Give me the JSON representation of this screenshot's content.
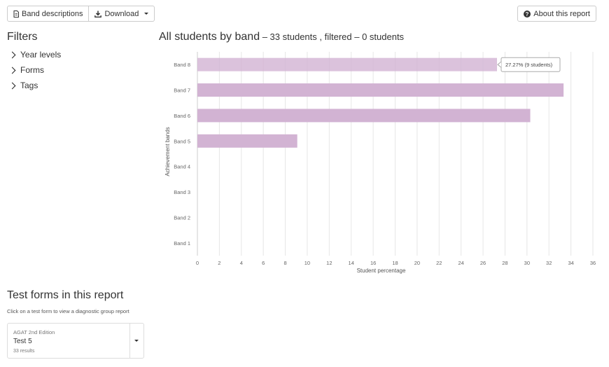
{
  "toolbar": {
    "band_descriptions_label": "Band descriptions",
    "download_label": "Download",
    "about_label": "About this report"
  },
  "filters": {
    "title": "Filters",
    "items": [
      "Year levels",
      "Forms",
      "Tags"
    ]
  },
  "report": {
    "title_main": "All students by band",
    "title_sub": " – 33 students , filtered – 0 students"
  },
  "chart_data": {
    "type": "bar",
    "orientation": "horizontal",
    "categories": [
      "Band 8",
      "Band 7",
      "Band 6",
      "Band 5",
      "Band 4",
      "Band 3",
      "Band 2",
      "Band 1"
    ],
    "values": [
      27.27,
      33.33,
      30.3,
      9.09,
      0,
      0,
      0,
      0
    ],
    "xlabel": "Student percentage",
    "ylabel": "Achievement bands",
    "xlim": [
      0,
      36
    ],
    "xticks": [
      0,
      2,
      4,
      6,
      8,
      10,
      12,
      14,
      16,
      18,
      20,
      22,
      24,
      26,
      28,
      30,
      32,
      34,
      36
    ],
    "grid": true,
    "bar_color": "#d2b3d3",
    "tooltip": {
      "category": "Band 8",
      "text": "27.27% (9 students)"
    }
  },
  "tests": {
    "title": "Test forms in this report",
    "hint": "Click on a test form to view a diagnostic group report",
    "card": {
      "edition": "AGAT 2nd Edition",
      "name": "Test 5",
      "results": "33 results"
    }
  }
}
